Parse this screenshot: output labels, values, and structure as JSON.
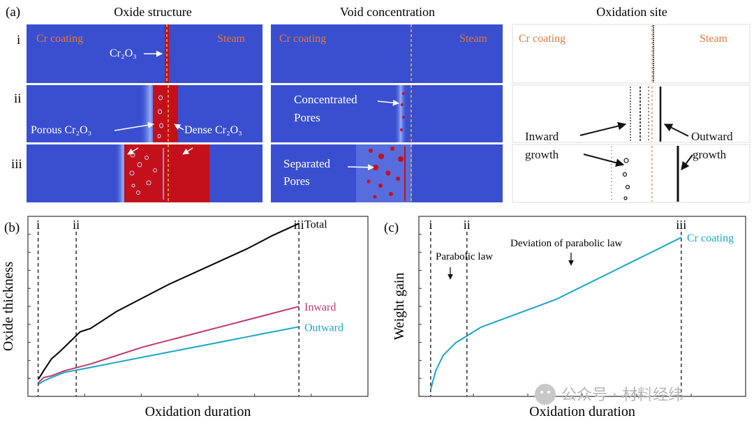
{
  "panel_a": {
    "label": "(a)",
    "rows": [
      "i",
      "ii",
      "iii"
    ],
    "columns": [
      {
        "title": "Oxide structure"
      },
      {
        "title": "Void concentration"
      },
      {
        "title": "Oxidation site"
      }
    ],
    "cr_coating_label": "Cr coating",
    "steam_label": "Steam",
    "annotations": {
      "cr2o3": "Cr₂O₃",
      "porous_cr2o3": "Porous Cr₂O₃",
      "dense_cr2o3": "Dense Cr₂O₃",
      "concentrated_pores": [
        "Concentrated",
        "Pores"
      ],
      "separated_pores": [
        "Separated",
        "Pores"
      ],
      "inward_growth": [
        "Inward",
        "growth"
      ],
      "outward_growth": [
        "Outward",
        "growth"
      ]
    },
    "colors": {
      "matrix": "#3a4fcf",
      "oxide": "#c4101a",
      "label_orange": "#e07840",
      "dashed_line": "#f2b33a"
    }
  },
  "chart_data": [
    {
      "type": "line",
      "panel": "(b)",
      "xlabel": "Oxidation duration",
      "ylabel": "Oxide thickness",
      "stage_markers": [
        "i",
        "ii",
        "iii"
      ],
      "x_ticks_labeled": false,
      "y_ticks_labeled": false,
      "series": [
        {
          "name": "Total",
          "color": "#000000",
          "x": [
            0.0,
            0.02,
            0.05,
            0.08,
            0.12,
            0.16,
            0.2,
            0.3,
            0.4,
            0.5,
            0.6,
            0.7,
            0.8,
            0.9,
            1.0
          ],
          "y": [
            0.08,
            0.13,
            0.2,
            0.24,
            0.3,
            0.36,
            0.38,
            0.48,
            0.56,
            0.64,
            0.71,
            0.78,
            0.85,
            0.93,
            1.0
          ]
        },
        {
          "name": "Inward",
          "color": "#c0396b",
          "x": [
            0.0,
            0.02,
            0.05,
            0.1,
            0.2,
            0.3,
            0.4,
            0.5,
            0.6,
            0.7,
            0.8,
            0.9,
            1.0
          ],
          "y": [
            0.06,
            0.09,
            0.1,
            0.13,
            0.17,
            0.22,
            0.27,
            0.31,
            0.35,
            0.39,
            0.43,
            0.47,
            0.51
          ]
        },
        {
          "name": "Outward",
          "color": "#1aa6c6",
          "x": [
            0.0,
            0.02,
            0.05,
            0.1,
            0.2,
            0.3,
            0.4,
            0.5,
            0.6,
            0.7,
            0.8,
            0.9,
            1.0
          ],
          "y": [
            0.05,
            0.07,
            0.09,
            0.12,
            0.15,
            0.18,
            0.21,
            0.24,
            0.27,
            0.3,
            0.33,
            0.36,
            0.39
          ]
        }
      ]
    },
    {
      "type": "line",
      "panel": "(c)",
      "xlabel": "Oxidation duration",
      "ylabel": "Weight gain",
      "stage_markers": [
        "i",
        "ii",
        "iii"
      ],
      "annotations": [
        "Parabolic law",
        "Deviation of parabolic law"
      ],
      "x_ticks_labeled": false,
      "y_ticks_labeled": false,
      "series": [
        {
          "name": "Cr coating",
          "color": "#1aa6c6",
          "x": [
            0.0,
            0.02,
            0.05,
            0.1,
            0.15,
            0.2,
            0.3,
            0.4,
            0.5,
            0.6,
            0.7,
            0.8,
            0.9,
            1.0
          ],
          "y": [
            0.0,
            0.12,
            0.22,
            0.3,
            0.35,
            0.4,
            0.46,
            0.52,
            0.58,
            0.66,
            0.74,
            0.82,
            0.9,
            0.98
          ]
        }
      ]
    }
  ],
  "watermark": "公众号 · 材料经纬"
}
